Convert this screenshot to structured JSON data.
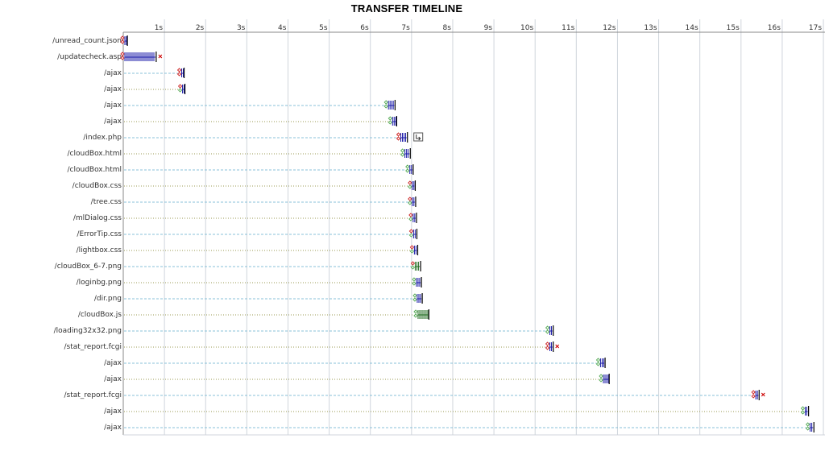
{
  "chart_data": {
    "type": "timeline",
    "title": "TRANSFER TIMELINE",
    "x_unit": "s",
    "xlim": [
      0,
      17
    ],
    "x_ticks": [
      "1s",
      "2s",
      "3s",
      "4s",
      "5s",
      "6s",
      "7s",
      "8s",
      "9s",
      "10s",
      "11s",
      "12s",
      "13s",
      "14s",
      "15s",
      "16s",
      "17s"
    ],
    "grid": true,
    "colors": {
      "receive": "#1a1aa8",
      "receive_js": "#1f6b1f",
      "error_marker": "#cc0000",
      "dns_marker": "#cc2222",
      "connect_marker": "#55aa55",
      "connector_dotted": "#9a9a50",
      "connector_dashed": "#88c0d8",
      "grid": "#d0d5dc",
      "axis": "#888888"
    },
    "requests": [
      {
        "url": "/unread_count.json",
        "start": 0.0,
        "end": 0.08,
        "markers": [
          "red",
          "red"
        ],
        "bar": "receive"
      },
      {
        "url": "/updatecheck.asp",
        "start": 0.0,
        "end": 0.78,
        "markers": [
          "red",
          "red"
        ],
        "bar": "receive",
        "failed": true
      },
      {
        "url": "/ajax",
        "start": 1.38,
        "end": 1.45,
        "markers": [
          "red",
          "red"
        ],
        "bar": "receive"
      },
      {
        "url": "/ajax",
        "start": 1.4,
        "end": 1.47,
        "markers": [
          "red",
          "green"
        ],
        "bar": "receive"
      },
      {
        "url": "/ajax",
        "start": 6.4,
        "end": 6.58,
        "markers": [
          "green",
          "green"
        ],
        "bar": "receive"
      },
      {
        "url": "/ajax",
        "start": 6.5,
        "end": 6.62,
        "markers": [
          "green",
          "green"
        ],
        "bar": "receive"
      },
      {
        "url": "/index.php",
        "start": 6.7,
        "end": 6.88,
        "markers": [
          "red",
          "red"
        ],
        "bar": "receive",
        "redirect": true
      },
      {
        "url": "/cloudBox.html",
        "start": 6.8,
        "end": 6.95,
        "markers": [
          "green",
          "green"
        ],
        "bar": "receive"
      },
      {
        "url": "/cloudBox.html",
        "start": 6.92,
        "end": 7.02,
        "markers": [
          "green",
          "green"
        ],
        "bar": "receive"
      },
      {
        "url": "/cloudBox.css",
        "start": 6.98,
        "end": 7.07,
        "markers": [
          "red",
          "green"
        ],
        "bar": "receive"
      },
      {
        "url": "/tree.css",
        "start": 6.98,
        "end": 7.08,
        "markers": [
          "red",
          "green"
        ],
        "bar": "receive"
      },
      {
        "url": "/mlDialog.css",
        "start": 7.0,
        "end": 7.1,
        "markers": [
          "red",
          "green"
        ],
        "bar": "receive"
      },
      {
        "url": "/ErrorTip.css",
        "start": 7.01,
        "end": 7.11,
        "markers": [
          "red",
          "green"
        ],
        "bar": "receive"
      },
      {
        "url": "/lightbox.css",
        "start": 7.03,
        "end": 7.13,
        "markers": [
          "red",
          "green"
        ],
        "bar": "receive"
      },
      {
        "url": "/cloudBox_6-7.png",
        "start": 7.05,
        "end": 7.2,
        "markers": [
          "red",
          "green"
        ],
        "bar": "receive_js"
      },
      {
        "url": "/loginbg.png",
        "start": 7.08,
        "end": 7.22,
        "markers": [
          "green",
          "green"
        ],
        "bar": "receive"
      },
      {
        "url": "/dir.png",
        "start": 7.1,
        "end": 7.24,
        "markers": [
          "green",
          "green"
        ],
        "bar": "receive"
      },
      {
        "url": "/cloudBox.js",
        "start": 7.12,
        "end": 7.4,
        "markers": [
          "green",
          "green"
        ],
        "bar": "receive_js"
      },
      {
        "url": "/loading32x32.png",
        "start": 10.32,
        "end": 10.42,
        "markers": [
          "green",
          "green"
        ],
        "bar": "receive"
      },
      {
        "url": "/stat_report.fcgi",
        "start": 10.32,
        "end": 10.42,
        "markers": [
          "red",
          "red"
        ],
        "bar": "receive",
        "failed": true
      },
      {
        "url": "/ajax",
        "start": 11.55,
        "end": 11.68,
        "markers": [
          "green",
          "green"
        ],
        "bar": "receive"
      },
      {
        "url": "/ajax",
        "start": 11.62,
        "end": 11.78,
        "markers": [
          "green",
          "green"
        ],
        "bar": "receive"
      },
      {
        "url": "/stat_report.fcgi",
        "start": 15.32,
        "end": 15.42,
        "markers": [
          "red",
          "red"
        ],
        "bar": "receive",
        "failed": true
      },
      {
        "url": "/ajax",
        "start": 16.52,
        "end": 16.62,
        "markers": [
          "green",
          "green"
        ],
        "bar": "receive"
      },
      {
        "url": "/ajax",
        "start": 16.64,
        "end": 16.75,
        "markers": [
          "green",
          "green"
        ],
        "bar": "receive"
      }
    ]
  }
}
